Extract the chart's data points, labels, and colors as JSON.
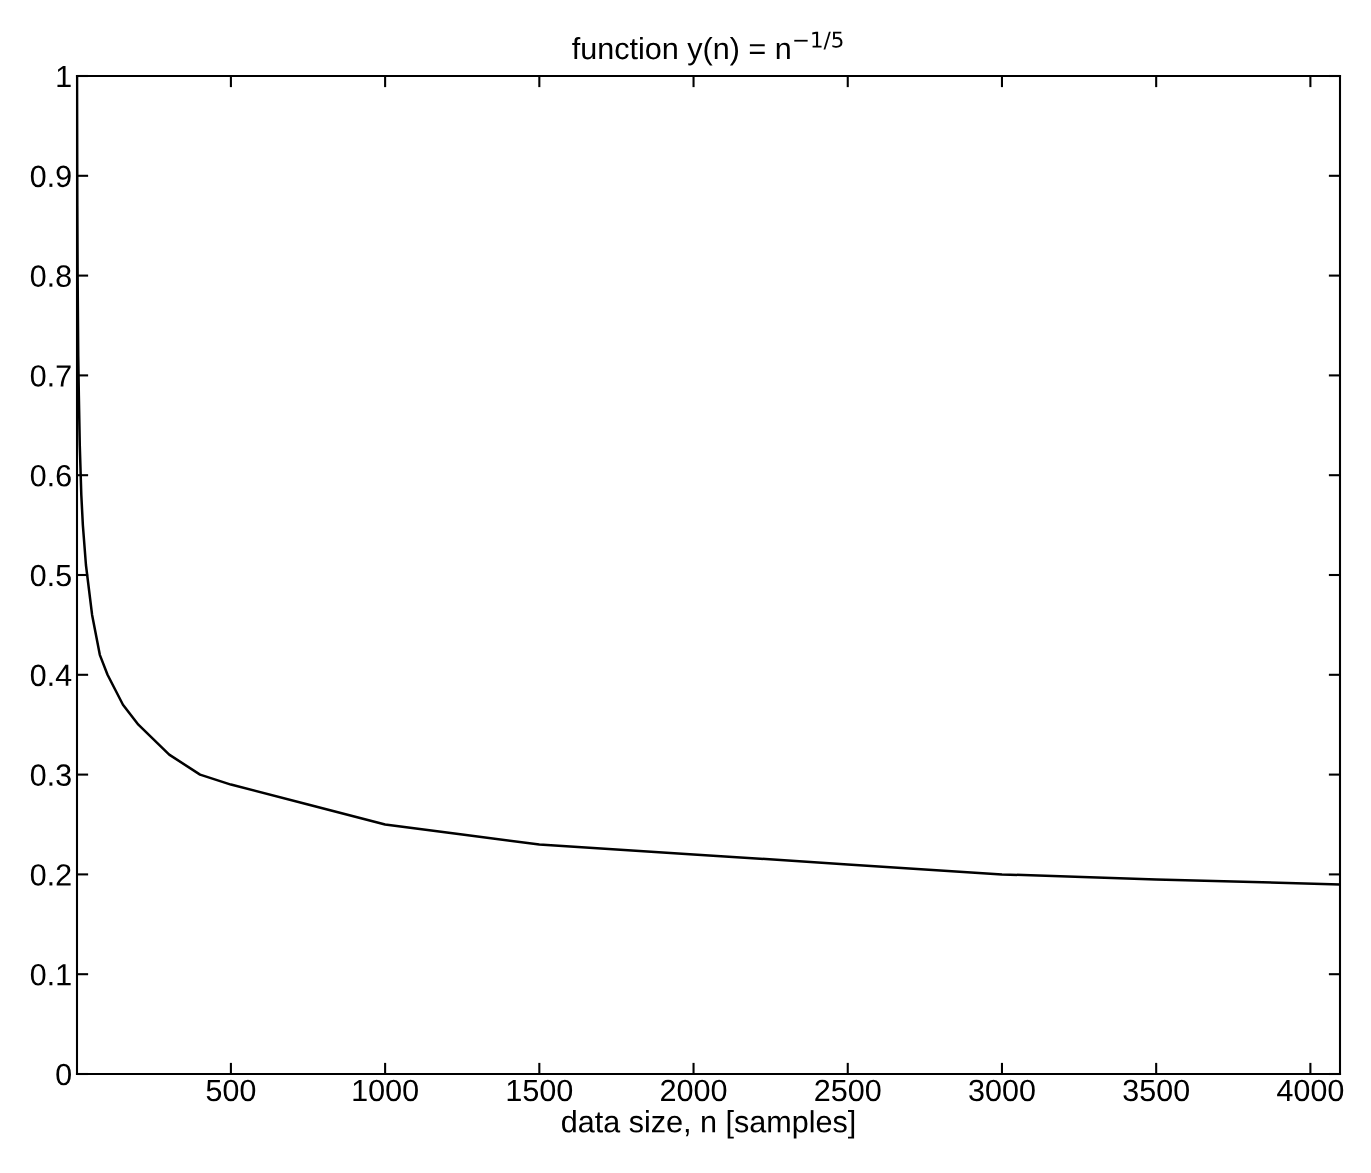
{
  "chart_data": {
    "type": "line",
    "title": "function y(n) = n$^{−1/5}$",
    "xlabel": "data size, n [samples]",
    "x": [
      1,
      2,
      3,
      5,
      7,
      10,
      15,
      20,
      30,
      50,
      75,
      100,
      150,
      200,
      300,
      400,
      500,
      750,
      1000,
      1250,
      1500,
      2000,
      2500,
      3000,
      3500,
      4096
    ],
    "series": [
      {
        "color": "#000000",
        "values": [
          1,
          0.87,
          0.8,
          0.72,
          0.68,
          0.63,
          0.58,
          0.55,
          0.51,
          0.46,
          0.42,
          0.4,
          0.37,
          0.35,
          0.32,
          0.3,
          0.29,
          0.27,
          0.25,
          0.24,
          0.23,
          0.22,
          0.21,
          0.2,
          0.195,
          0.19
        ]
      }
    ],
    "xlim": [
      1,
      4096
    ],
    "xticks": [
      500,
      1000,
      1500,
      2000,
      2500,
      3000,
      3500,
      4000
    ],
    "ylim": [
      0,
      1
    ],
    "yticks": [
      0,
      0.1,
      0.2,
      0.3,
      0.4,
      0.5,
      0.6,
      0.7,
      0.8,
      0.9,
      1
    ],
    "grid": false,
    "legend": false,
    "marker": "none",
    "line_style": "solid"
  }
}
